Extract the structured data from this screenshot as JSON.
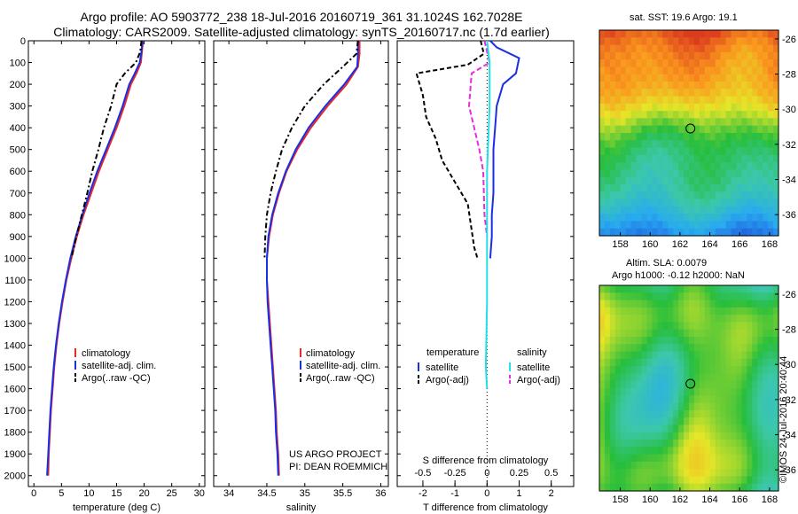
{
  "header": {
    "line1": "Argo profile: AO 5903772_238 18-Jul-2016 20160719_361 31.1024S 162.7028E",
    "line2": "Climatology: CARS2009. Satellite-adjusted climatology: synTS_20160717.nc (1.7d earlier)"
  },
  "stamp": "©IMOS 24-Jul-2016 20:40:44",
  "colors": {
    "climatology": "#e8282a",
    "satellite": "#1a2ee6",
    "argo": "#000000",
    "salinity_satellite": "#22e0e6",
    "salinity_argo": "#e82ae0"
  },
  "chart_data": [
    {
      "type": "line",
      "xlabel": "temperature (deg C)",
      "xlim": [
        -1,
        31
      ],
      "xticks": [
        0,
        5,
        10,
        15,
        20,
        25,
        30
      ],
      "ylim": [
        0,
        2050
      ],
      "yticks": [
        0,
        100,
        200,
        300,
        400,
        500,
        600,
        700,
        800,
        900,
        1000,
        1100,
        1200,
        1300,
        1400,
        1500,
        1600,
        1700,
        1800,
        1900,
        2000
      ],
      "legend": [
        "climatology",
        "satellite-adj. clim.",
        "Argo(..raw -QC)"
      ],
      "series": [
        {
          "name": "climatology",
          "style": "solid",
          "points": [
            [
              19.8,
              0
            ],
            [
              19.6,
              50
            ],
            [
              19.4,
              100
            ],
            [
              18.6,
              150
            ],
            [
              17.6,
              200
            ],
            [
              16.4,
              300
            ],
            [
              15.0,
              400
            ],
            [
              13.4,
              500
            ],
            [
              11.8,
              600
            ],
            [
              10.4,
              700
            ],
            [
              9.0,
              800
            ],
            [
              7.8,
              900
            ],
            [
              6.8,
              1000
            ],
            [
              5.9,
              1100
            ],
            [
              5.2,
              1200
            ],
            [
              4.6,
              1300
            ],
            [
              4.1,
              1400
            ],
            [
              3.7,
              1500
            ],
            [
              3.4,
              1600
            ],
            [
              3.1,
              1700
            ],
            [
              2.9,
              1800
            ],
            [
              2.7,
              1900
            ],
            [
              2.6,
              2000
            ]
          ]
        },
        {
          "name": "satellite-adj. clim.",
          "style": "solid",
          "points": [
            [
              19.7,
              0
            ],
            [
              19.5,
              50
            ],
            [
              19.2,
              100
            ],
            [
              18.3,
              150
            ],
            [
              17.3,
              200
            ],
            [
              16.1,
              300
            ],
            [
              14.7,
              400
            ],
            [
              13.1,
              500
            ],
            [
              11.5,
              600
            ],
            [
              10.1,
              700
            ],
            [
              8.8,
              800
            ],
            [
              7.6,
              900
            ],
            [
              6.6,
              1000
            ],
            [
              5.8,
              1100
            ],
            [
              5.1,
              1200
            ],
            [
              4.5,
              1300
            ],
            [
              4.0,
              1400
            ],
            [
              3.6,
              1500
            ],
            [
              3.3,
              1600
            ],
            [
              3.0,
              1700
            ],
            [
              2.8,
              1800
            ],
            [
              2.6,
              1900
            ],
            [
              2.4,
              2000
            ]
          ]
        },
        {
          "name": "Argo(..raw -QC)",
          "style": "dash",
          "points": [
            [
              19.5,
              0
            ],
            [
              19.3,
              50
            ],
            [
              18.5,
              100
            ],
            [
              16.5,
              150
            ],
            [
              15.0,
              200
            ],
            [
              14.0,
              300
            ],
            [
              12.7,
              400
            ],
            [
              11.7,
              500
            ],
            [
              10.6,
              600
            ],
            [
              9.7,
              700
            ],
            [
              8.7,
              800
            ],
            [
              7.7,
              900
            ],
            [
              6.8,
              1000
            ]
          ]
        }
      ]
    },
    {
      "type": "line",
      "xlabel": "salinity",
      "xlim": [
        33.8,
        36.1
      ],
      "xticks": [
        34,
        34.5,
        35,
        35.5,
        36
      ],
      "ylim": [
        0,
        2050
      ],
      "legend": [
        "climatology",
        "satellite-adj. clim.",
        "Argo(..raw -QC)"
      ],
      "annotations": [
        "US ARGO PROJECT",
        "PI: DEAN ROEMMICH"
      ],
      "series": [
        {
          "name": "climatology",
          "style": "solid",
          "points": [
            [
              35.72,
              0
            ],
            [
              35.72,
              60
            ],
            [
              35.7,
              120
            ],
            [
              35.55,
              200
            ],
            [
              35.3,
              300
            ],
            [
              35.08,
              400
            ],
            [
              34.9,
              500
            ],
            [
              34.76,
              600
            ],
            [
              34.66,
              700
            ],
            [
              34.58,
              800
            ],
            [
              34.53,
              900
            ],
            [
              34.5,
              1000
            ],
            [
              34.5,
              1100
            ],
            [
              34.52,
              1200
            ],
            [
              34.54,
              1300
            ],
            [
              34.56,
              1400
            ],
            [
              34.58,
              1500
            ],
            [
              34.6,
              1600
            ],
            [
              34.62,
              1700
            ],
            [
              34.63,
              1800
            ],
            [
              34.65,
              1900
            ],
            [
              34.66,
              2000
            ]
          ]
        },
        {
          "name": "satellite-adj. clim.",
          "style": "solid",
          "points": [
            [
              35.7,
              0
            ],
            [
              35.7,
              60
            ],
            [
              35.69,
              120
            ],
            [
              35.52,
              200
            ],
            [
              35.27,
              300
            ],
            [
              35.05,
              400
            ],
            [
              34.88,
              500
            ],
            [
              34.75,
              600
            ],
            [
              34.65,
              700
            ],
            [
              34.57,
              800
            ],
            [
              34.52,
              900
            ],
            [
              34.5,
              1000
            ],
            [
              34.5,
              1100
            ],
            [
              34.51,
              1200
            ],
            [
              34.53,
              1300
            ],
            [
              34.55,
              1400
            ],
            [
              34.57,
              1500
            ],
            [
              34.59,
              1600
            ],
            [
              34.61,
              1700
            ],
            [
              34.62,
              1800
            ],
            [
              34.64,
              1900
            ],
            [
              34.65,
              2000
            ]
          ]
        },
        {
          "name": "Argo(..raw -QC)",
          "style": "dash",
          "points": [
            [
              35.7,
              0
            ],
            [
              35.68,
              60
            ],
            [
              35.5,
              120
            ],
            [
              35.25,
              200
            ],
            [
              35.0,
              300
            ],
            [
              34.83,
              400
            ],
            [
              34.7,
              500
            ],
            [
              34.62,
              600
            ],
            [
              34.55,
              700
            ],
            [
              34.5,
              800
            ],
            [
              34.48,
              900
            ],
            [
              34.47,
              1000
            ]
          ]
        }
      ]
    },
    {
      "type": "line",
      "xlabel": "T difference from climatology",
      "xlabel_top": "S difference from climatology",
      "xlim": [
        -2.8,
        2.7
      ],
      "xticks": [
        -2,
        -1,
        0,
        1,
        2
      ],
      "xticks_top": [
        -0.5,
        -0.25,
        0,
        0.25,
        0.5
      ],
      "ylim": [
        0,
        2050
      ],
      "legend_titles": [
        "temperature",
        "salinity"
      ],
      "legend": [
        "satellite",
        "Argo(-adj)",
        "satellite",
        "Argo(-adj)"
      ],
      "series": [
        {
          "name": "satellite",
          "group": "temperature",
          "style": "solid",
          "points": [
            [
              0.1,
              0
            ],
            [
              0.3,
              30
            ],
            [
              1.0,
              80
            ],
            [
              0.9,
              150
            ],
            [
              0.5,
              200
            ],
            [
              0.3,
              300
            ],
            [
              0.25,
              400
            ],
            [
              0.2,
              500
            ],
            [
              0.2,
              600
            ],
            [
              0.2,
              700
            ],
            [
              0.15,
              800
            ],
            [
              0.15,
              900
            ],
            [
              0.1,
              1000
            ]
          ]
        },
        {
          "name": "Argo(-adj)",
          "group": "temperature",
          "style": "dash",
          "points": [
            [
              -0.2,
              0
            ],
            [
              -0.1,
              60
            ],
            [
              -0.6,
              110
            ],
            [
              -2.2,
              150
            ],
            [
              -2.0,
              250
            ],
            [
              -1.9,
              350
            ],
            [
              -1.6,
              450
            ],
            [
              -1.4,
              550
            ],
            [
              -1.0,
              650
            ],
            [
              -0.6,
              750
            ],
            [
              -0.5,
              850
            ],
            [
              -0.4,
              950
            ],
            [
              -0.3,
              1000
            ]
          ]
        },
        {
          "name": "satellite",
          "group": "salinity",
          "style": "solid",
          "points": [
            [
              0.0,
              0
            ],
            [
              0.02,
              100
            ],
            [
              0.02,
              300
            ],
            [
              0.0,
              600
            ],
            [
              0.0,
              900
            ],
            [
              0.0,
              1200
            ],
            [
              -0.01,
              1500
            ],
            [
              0.0,
              1600
            ]
          ]
        },
        {
          "name": "Argo(-adj)",
          "group": "salinity",
          "style": "dash",
          "points": [
            [
              -0.02,
              0
            ],
            [
              0.0,
              50
            ],
            [
              0.02,
              100
            ],
            [
              -0.12,
              150
            ],
            [
              -0.14,
              300
            ],
            [
              -0.1,
              400
            ],
            [
              -0.06,
              500
            ],
            [
              -0.03,
              600
            ],
            [
              -0.02,
              800
            ],
            [
              0.0,
              900
            ]
          ]
        }
      ]
    }
  ],
  "maps": {
    "sst": {
      "title": "sat. SST: 19.6 Argo: 19.1",
      "xticks": [
        "158",
        "160",
        "162",
        "164",
        "166",
        "168"
      ],
      "yticks": [
        "-26",
        "-28",
        "-30",
        "-32",
        "-34",
        "-36"
      ],
      "marker": {
        "lon": 162.7,
        "lat": -31.1
      }
    },
    "sla": {
      "title1": "Altim. SLA: 0.0079",
      "title2": "Argo h1000: -0.12 h2000: NaN",
      "xticks": [
        "158",
        "160",
        "162",
        "164",
        "166",
        "168"
      ],
      "yticks": [
        "-26",
        "-28",
        "-30",
        "-32",
        "-34",
        "-36"
      ],
      "marker": {
        "lon": 162.7,
        "lat": -31.1
      }
    }
  }
}
